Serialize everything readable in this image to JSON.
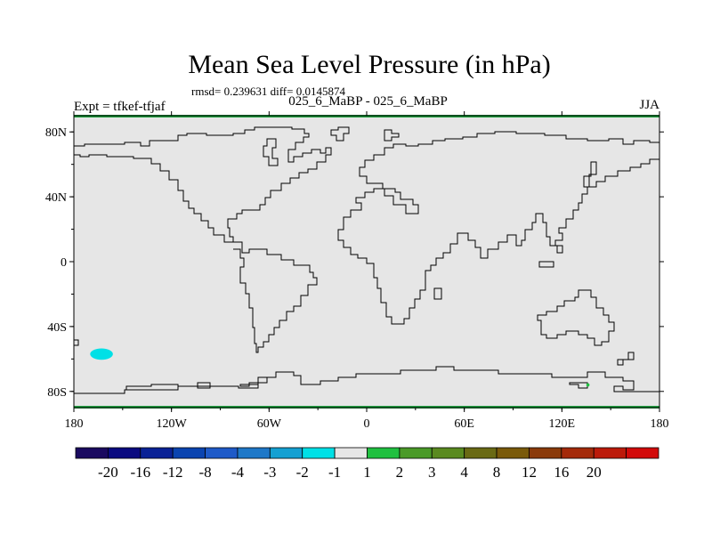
{
  "title": "Mean Sea Level Pressure (in hPa)",
  "stats": "rmsd= 0.239631 diff= 0.0145874",
  "subtitle": "025_6_MaBP - 025_6_MaBP",
  "left_label": "Expt = tfkef-tfjaf",
  "right_label": "JJA",
  "colors": {
    "background_field": "#e6e6e6",
    "coastline": "#000000",
    "anomaly_blob": "#00e0e6",
    "anomaly_dot": "#20c040",
    "top_band": "#20a040"
  },
  "map": {
    "lon_ticks": [
      "180",
      "120W",
      "60W",
      "0",
      "60E",
      "120E",
      "180"
    ],
    "lat_ticks": [
      "80N",
      "40N",
      "0",
      "40S",
      "80S"
    ],
    "lat_range": [
      -90,
      90
    ],
    "lon_range": [
      -180,
      180
    ],
    "anomalies": [
      {
        "label": "cyan blob",
        "lon": -163,
        "lat": -57,
        "lon_width": 14,
        "lat_height": 7,
        "color_key": "anomaly_blob"
      },
      {
        "label": "green dot",
        "lon": 136,
        "lat": -76,
        "lon_width": 2,
        "lat_height": 2,
        "color_key": "anomaly_dot"
      }
    ]
  },
  "colorbar": {
    "colors": [
      "#1a0a60",
      "#0a0a80",
      "#0a2296",
      "#0a44b0",
      "#1e5ac8",
      "#1e78c8",
      "#14a0d2",
      "#00e0e6",
      "#e6e6e6",
      "#20c040",
      "#4a9a28",
      "#5a8a20",
      "#6a6a14",
      "#7a5a0a",
      "#8a3a0a",
      "#a42a0a",
      "#bc1a0a",
      "#d20a0a"
    ],
    "labels": [
      "-20",
      "-16",
      "-12",
      "-8",
      "-4",
      "-3",
      "-2",
      "-1",
      "1",
      "2",
      "3",
      "4",
      "8",
      "12",
      "16",
      "20"
    ]
  }
}
